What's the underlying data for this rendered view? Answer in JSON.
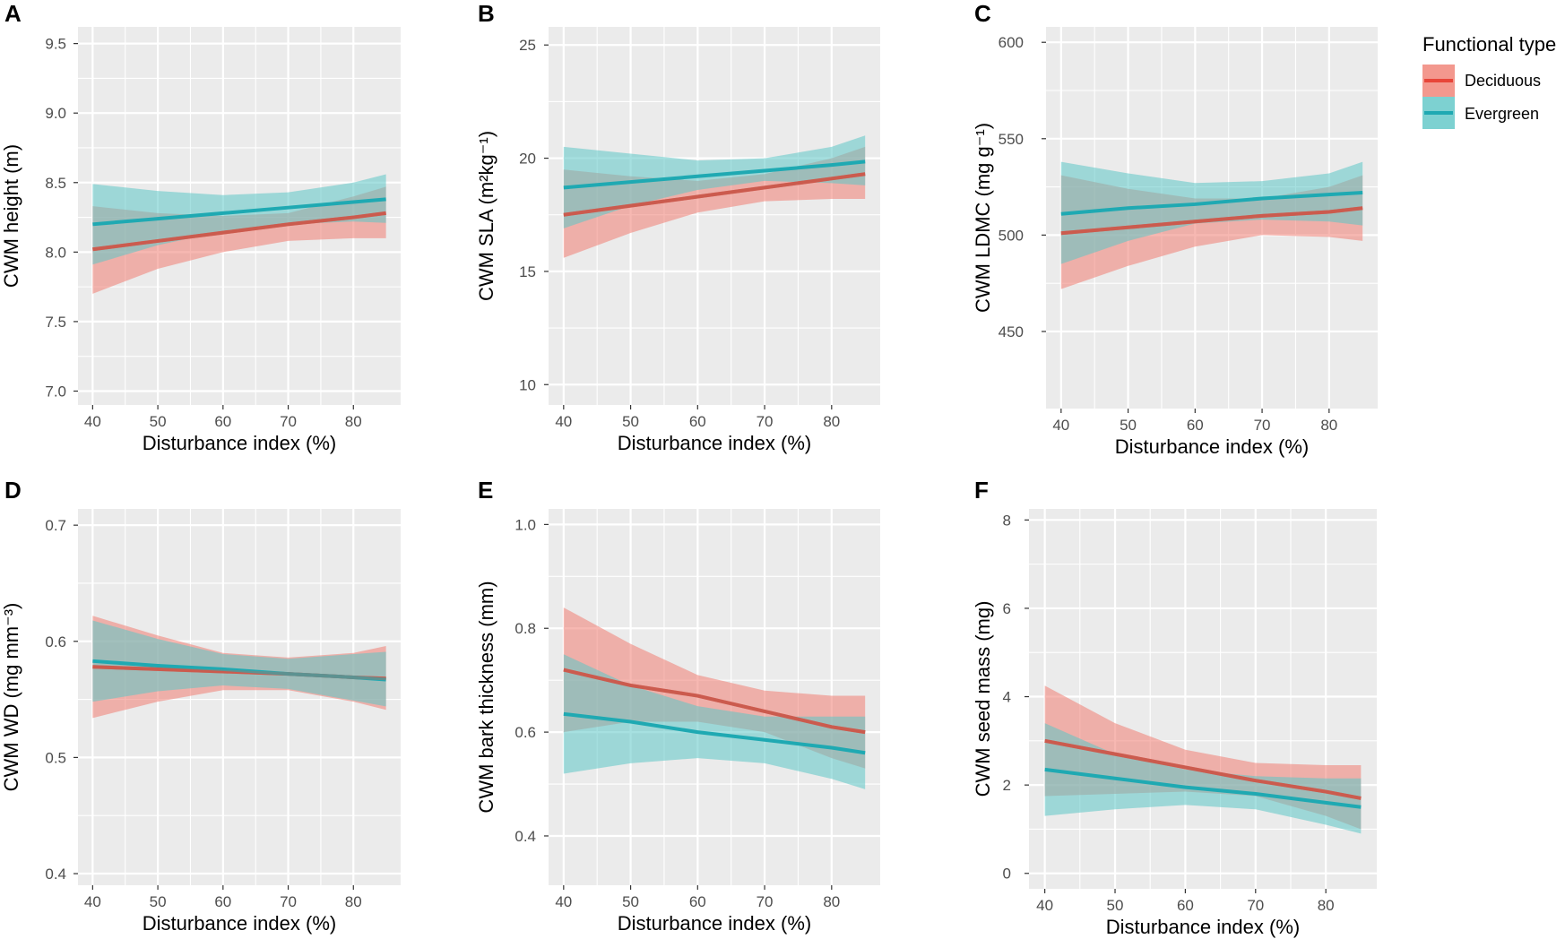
{
  "legend": {
    "title": "Functional type",
    "entries": [
      {
        "label": "Deciduous",
        "line_color": "#E8463A",
        "band_color": "#F07E72"
      },
      {
        "label": "Evergreen",
        "line_color": "#1FA9B2",
        "band_color": "#5CC6C6"
      }
    ]
  },
  "colors": {
    "panel_background": "#EBEBEB",
    "gridline": "#FFFFFF",
    "overlap_line": "#A87568"
  },
  "chart_data": [
    {
      "panel": "A",
      "type": "line",
      "xlabel": "Disturbance index (%)",
      "ylabel": "CWM height (m)",
      "xlim": [
        37.75,
        87.25
      ],
      "ylim": [
        6.9,
        9.62
      ],
      "xticks": [
        40,
        50,
        60,
        70,
        80
      ],
      "xtick_labels": [
        "40",
        "50",
        "60",
        "70",
        "80"
      ],
      "yticks": [
        7.0,
        7.5,
        8.0,
        8.5,
        9.0,
        9.5
      ],
      "ytick_labels": [
        "7.0",
        "7.5",
        "8.0",
        "8.5",
        "9.0",
        "9.5"
      ],
      "x": [
        40,
        50,
        60,
        70,
        80,
        85
      ],
      "series": [
        {
          "name": "Deciduous",
          "fit": [
            8.02,
            8.08,
            8.14,
            8.2,
            8.25,
            8.28
          ],
          "lower": [
            7.7,
            7.88,
            8.0,
            8.08,
            8.1,
            8.1
          ],
          "upper": [
            8.33,
            8.28,
            8.26,
            8.28,
            8.4,
            8.47
          ]
        },
        {
          "name": "Evergreen",
          "fit": [
            8.2,
            8.24,
            8.28,
            8.32,
            8.36,
            8.38
          ],
          "lower": [
            7.91,
            8.05,
            8.15,
            8.2,
            8.22,
            8.21
          ],
          "upper": [
            8.49,
            8.44,
            8.41,
            8.43,
            8.5,
            8.56
          ]
        }
      ]
    },
    {
      "panel": "B",
      "type": "line",
      "xlabel": "Disturbance index (%)",
      "ylabel": "CWM SLA (m²kg⁻¹)",
      "xlim": [
        37.75,
        87.25
      ],
      "ylim": [
        9.1,
        25.8
      ],
      "xticks": [
        40,
        50,
        60,
        70,
        80
      ],
      "xtick_labels": [
        "40",
        "50",
        "60",
        "70",
        "80"
      ],
      "yticks": [
        10,
        15,
        20,
        25
      ],
      "ytick_labels": [
        "10",
        "15",
        "20",
        "25"
      ],
      "x": [
        40,
        50,
        60,
        70,
        80,
        85
      ],
      "series": [
        {
          "name": "Deciduous",
          "fit": [
            17.5,
            17.9,
            18.3,
            18.7,
            19.1,
            19.3
          ],
          "lower": [
            15.6,
            16.7,
            17.6,
            18.1,
            18.2,
            18.2
          ],
          "upper": [
            19.5,
            19.2,
            19.0,
            19.3,
            20.0,
            20.5
          ]
        },
        {
          "name": "Evergreen",
          "fit": [
            18.7,
            18.95,
            19.2,
            19.45,
            19.7,
            19.85
          ],
          "lower": [
            16.9,
            17.9,
            18.6,
            19.0,
            18.9,
            18.8
          ],
          "upper": [
            20.5,
            20.2,
            19.9,
            20.0,
            20.5,
            21.0
          ]
        }
      ]
    },
    {
      "panel": "C",
      "type": "line",
      "xlabel": "Disturbance index (%)",
      "ylabel": "CWM LDMC (mg g⁻¹)",
      "xlim": [
        37.75,
        87.25
      ],
      "ylim": [
        410,
        608
      ],
      "xticks": [
        40,
        50,
        60,
        70,
        80
      ],
      "xtick_labels": [
        "40",
        "50",
        "60",
        "70",
        "80"
      ],
      "yticks": [
        450,
        500,
        550,
        600
      ],
      "ytick_labels": [
        "450",
        "500",
        "550",
        "600"
      ],
      "x": [
        40,
        50,
        60,
        70,
        80,
        85
      ],
      "series": [
        {
          "name": "Deciduous",
          "fit": [
            501,
            504,
            507,
            510,
            512,
            514
          ],
          "lower": [
            472,
            484,
            494,
            500,
            499,
            497
          ],
          "upper": [
            531,
            524,
            519,
            519,
            525,
            531
          ]
        },
        {
          "name": "Evergreen",
          "fit": [
            511,
            514,
            516,
            519,
            521,
            522
          ],
          "lower": [
            485,
            497,
            506,
            508,
            507,
            505
          ],
          "upper": [
            538,
            532,
            527,
            528,
            532,
            538
          ]
        }
      ]
    },
    {
      "panel": "D",
      "type": "line",
      "xlabel": "Disturbance index (%)",
      "ylabel": "CWM WD (mg mm⁻³)",
      "xlim": [
        37.75,
        87.25
      ],
      "ylim": [
        0.39,
        0.714
      ],
      "xticks": [
        40,
        50,
        60,
        70,
        80
      ],
      "xtick_labels": [
        "40",
        "50",
        "60",
        "70",
        "80"
      ],
      "yticks": [
        0.4,
        0.5,
        0.6,
        0.7
      ],
      "ytick_labels": [
        "0.4",
        "0.5",
        "0.6",
        "0.7"
      ],
      "x": [
        40,
        50,
        60,
        70,
        80,
        85
      ],
      "series": [
        {
          "name": "Deciduous",
          "fit": [
            0.578,
            0.576,
            0.574,
            0.572,
            0.569,
            0.568
          ],
          "lower": [
            0.534,
            0.548,
            0.558,
            0.558,
            0.548,
            0.541
          ],
          "upper": [
            0.622,
            0.605,
            0.59,
            0.586,
            0.59,
            0.596
          ]
        },
        {
          "name": "Evergreen",
          "fit": [
            0.583,
            0.579,
            0.576,
            0.572,
            0.569,
            0.567
          ],
          "lower": [
            0.548,
            0.557,
            0.562,
            0.559,
            0.549,
            0.544
          ],
          "upper": [
            0.618,
            0.602,
            0.589,
            0.585,
            0.589,
            0.591
          ]
        }
      ]
    },
    {
      "panel": "E",
      "type": "line",
      "xlabel": "Disturbance index (%)",
      "ylabel": "CWM bark thickness (mm)",
      "xlim": [
        37.75,
        87.25
      ],
      "ylim": [
        0.305,
        1.03
      ],
      "xticks": [
        40,
        50,
        60,
        70,
        80
      ],
      "xtick_labels": [
        "40",
        "50",
        "60",
        "70",
        "80"
      ],
      "yticks": [
        0.4,
        0.6,
        0.8,
        1.0
      ],
      "ytick_labels": [
        "0.4",
        "0.6",
        "0.8",
        "1.0"
      ],
      "x": [
        40,
        50,
        60,
        70,
        80,
        85
      ],
      "series": [
        {
          "name": "Deciduous",
          "fit": [
            0.72,
            0.69,
            0.67,
            0.64,
            0.61,
            0.6
          ],
          "lower": [
            0.6,
            0.62,
            0.62,
            0.6,
            0.55,
            0.53
          ],
          "upper": [
            0.84,
            0.77,
            0.71,
            0.68,
            0.67,
            0.67
          ]
        },
        {
          "name": "Evergreen",
          "fit": [
            0.635,
            0.62,
            0.6,
            0.585,
            0.57,
            0.56
          ],
          "lower": [
            0.52,
            0.54,
            0.55,
            0.54,
            0.51,
            0.49
          ],
          "upper": [
            0.75,
            0.69,
            0.65,
            0.63,
            0.63,
            0.63
          ]
        }
      ]
    },
    {
      "panel": "F",
      "type": "line",
      "xlabel": "Disturbance index (%)",
      "ylabel": "CWM seed mass (mg)",
      "xlim": [
        37.75,
        87.25
      ],
      "ylim": [
        -0.35,
        8.25
      ],
      "xticks": [
        40,
        50,
        60,
        70,
        80
      ],
      "xtick_labels": [
        "40",
        "50",
        "60",
        "70",
        "80"
      ],
      "yticks": [
        0,
        2,
        4,
        6,
        8
      ],
      "ytick_labels": [
        "0",
        "2",
        "4",
        "6",
        "8"
      ],
      "x": [
        40,
        50,
        60,
        70,
        80,
        85
      ],
      "series": [
        {
          "name": "Deciduous",
          "fit": [
            3.0,
            2.7,
            2.4,
            2.1,
            1.85,
            1.7
          ],
          "lower": [
            1.75,
            1.8,
            1.85,
            1.75,
            1.3,
            1.0
          ],
          "upper": [
            4.25,
            3.4,
            2.8,
            2.5,
            2.45,
            2.45
          ]
        },
        {
          "name": "Evergreen",
          "fit": [
            2.35,
            2.15,
            1.95,
            1.8,
            1.6,
            1.5
          ],
          "lower": [
            1.3,
            1.45,
            1.55,
            1.45,
            1.1,
            0.9
          ],
          "upper": [
            3.4,
            2.7,
            2.35,
            2.2,
            2.15,
            2.15
          ]
        }
      ]
    }
  ]
}
